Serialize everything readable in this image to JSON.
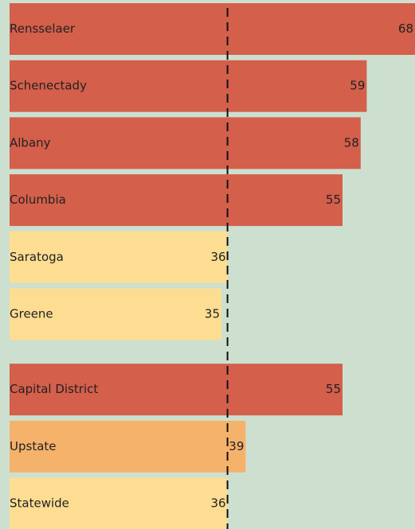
{
  "chart_data": {
    "type": "bar",
    "orientation": "horizontal",
    "categories": [
      "Rensselaer",
      "Schenectady",
      "Albany",
      "Columbia",
      "Saratoga",
      "Greene",
      null,
      "Capital District",
      "Upstate",
      "Statewide"
    ],
    "values": [
      68,
      59,
      58,
      55,
      36,
      35,
      null,
      55,
      39,
      36
    ],
    "colors": [
      "#d45f4b",
      "#d45f4b",
      "#d45f4b",
      "#d45f4b",
      "#fddd92",
      "#fddd92",
      null,
      "#d45f4b",
      "#f5b26b",
      "#fddd92"
    ],
    "reference_line": 36,
    "background": "#cde0d0"
  }
}
